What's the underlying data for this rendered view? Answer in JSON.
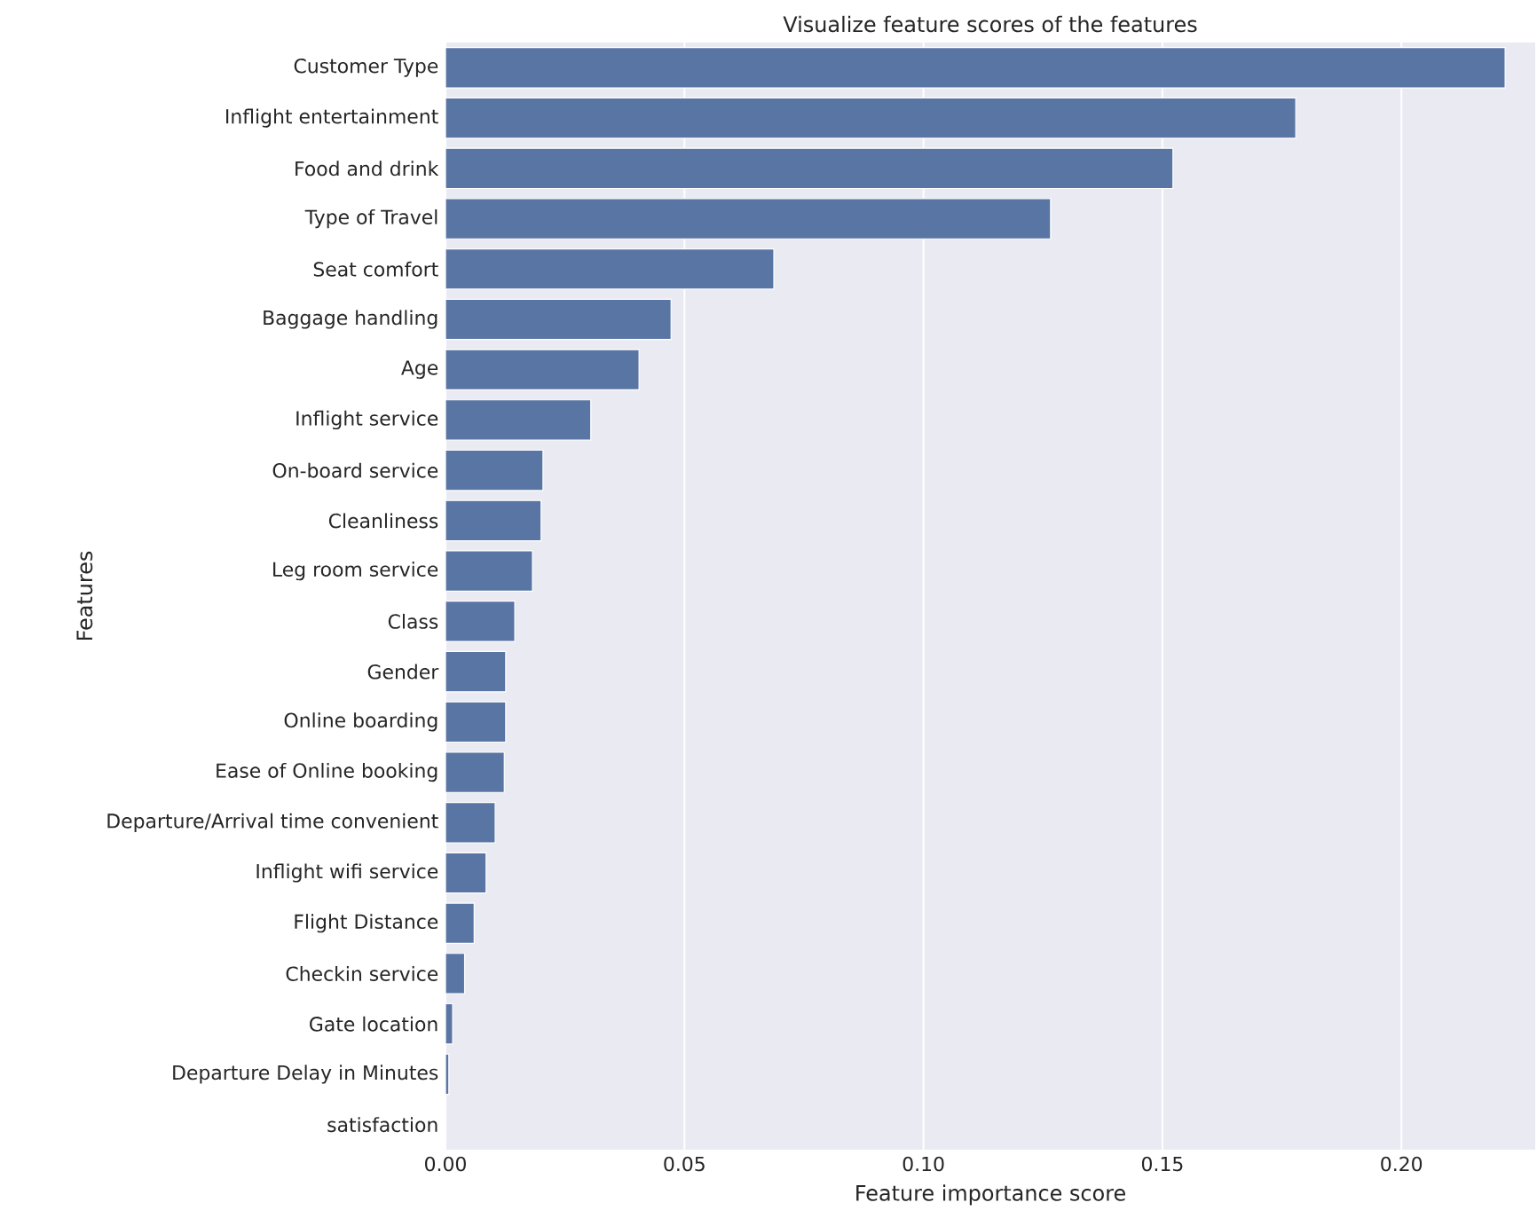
{
  "chart_data": {
    "type": "bar",
    "orientation": "horizontal",
    "title": "Visualize feature scores of the features",
    "xlabel": "Feature importance score",
    "ylabel": "Features",
    "categories": [
      "Customer Type",
      "Inflight entertainment",
      "Food and drink",
      "Type of Travel",
      "Seat comfort",
      "Baggage handling",
      "Age",
      "Inflight service",
      "On-board service",
      "Cleanliness",
      "Leg room service",
      "Class",
      "Gender",
      "Online boarding",
      "Ease of Online booking",
      "Departure/Arrival time convenient",
      "Inflight wifi service",
      "Flight Distance",
      "Checkin service",
      "Gate location",
      "Departure Delay in Minutes",
      "satisfaction"
    ],
    "values": [
      0.2217,
      0.1779,
      0.1522,
      0.1266,
      0.0687,
      0.0472,
      0.0405,
      0.0304,
      0.0204,
      0.02,
      0.0182,
      0.0145,
      0.0126,
      0.0126,
      0.0123,
      0.0104,
      0.0085,
      0.006,
      0.004,
      0.0015,
      0.0007,
      0.0
    ],
    "color": "#5975a4",
    "xlim": [
      0,
      0.228
    ],
    "xticks": [
      {
        "value": 0,
        "label": "0.00"
      },
      {
        "value": 0.05,
        "label": "0.05"
      },
      {
        "value": 0.1,
        "label": "0.10"
      },
      {
        "value": 0.15,
        "label": "0.15"
      },
      {
        "value": 0.2,
        "label": "0.20"
      }
    ],
    "grid": "x"
  }
}
